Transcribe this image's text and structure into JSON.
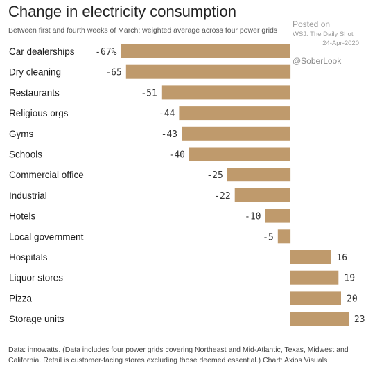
{
  "header": {
    "title": "Change in electricity consumption",
    "subtitle": "Between first and fourth weeks of March; weighted average across four power grids"
  },
  "watermark": {
    "line1": "Posted on",
    "line2": "WSJ: The Daily Shot",
    "line3": "24-Apr-2020",
    "handle": "@SoberLook"
  },
  "footnote": {
    "text": "Data: innowatts. (Data includes four power grids covering Northeast and Mid-Atlantic, Texas, Midwest and California. Retail is customer-facing stores excluding those deemed essential.) Chart: Axios Visuals"
  },
  "chart_data": {
    "type": "bar",
    "orientation": "horizontal",
    "categories": [
      "Car dealerships",
      "Dry cleaning",
      "Restaurants",
      "Religious orgs",
      "Gyms",
      "Schools",
      "Commercial office",
      "Industrial",
      "Hotels",
      "Local government",
      "Hospitals",
      "Liquor stores",
      "Pizza",
      "Storage units"
    ],
    "values": [
      -67,
      -65,
      -51,
      -44,
      -43,
      -40,
      -25,
      -22,
      -10,
      -5,
      16,
      19,
      20,
      23
    ],
    "value_labels": [
      "-67%",
      "-65",
      "-51",
      "-44",
      "-43",
      "-40",
      "-25",
      "-22",
      "-10",
      "-5",
      "16",
      "19",
      "20",
      "23"
    ],
    "title": "Change in electricity consumption",
    "xlabel": "",
    "ylabel": "",
    "xlim": [
      -67,
      23
    ],
    "grid": false,
    "legend": "none",
    "bar_color": "#bf9a6c"
  }
}
